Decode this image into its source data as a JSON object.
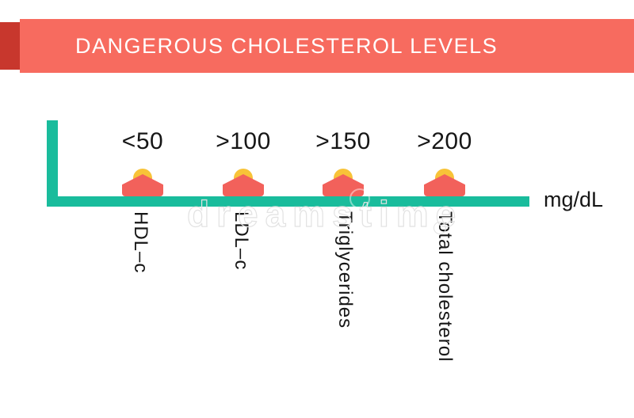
{
  "header": {
    "title": "DANGEROUS CHOLESTEROL LEVELS"
  },
  "chart": {
    "unit": "mg/dL",
    "items": [
      {
        "value": "<50",
        "label": "HDL–c"
      },
      {
        "value": ">100",
        "label": "LDL–c"
      },
      {
        "value": ">150",
        "label": "Triglycerides"
      },
      {
        "value": ">200",
        "label": "Total cholesterol"
      }
    ]
  },
  "chart_data": {
    "type": "scatter",
    "title": "DANGEROUS CHOLESTEROL LEVELS",
    "categories": [
      "HDL–c",
      "LDL–c",
      "Triglycerides",
      "Total cholesterol"
    ],
    "values": [
      "<50",
      ">100",
      ">150",
      ">200"
    ],
    "unit": "mg/dL",
    "xlabel": "",
    "ylabel": "",
    "legend": false,
    "notes": "Dangerous threshold markers placed along a horizontal axis; categories labeled vertically below the axis; no numeric scale beyond threshold labels"
  },
  "watermark": {
    "text": "dreamstime"
  },
  "colors": {
    "banner": "#f76b5f",
    "banner_accent": "#c8372d",
    "axis": "#19bc9c",
    "marker_red": "#f2615b",
    "marker_yellow": "#f8c338",
    "title_text": "#ffffff",
    "body_text": "#161616"
  }
}
